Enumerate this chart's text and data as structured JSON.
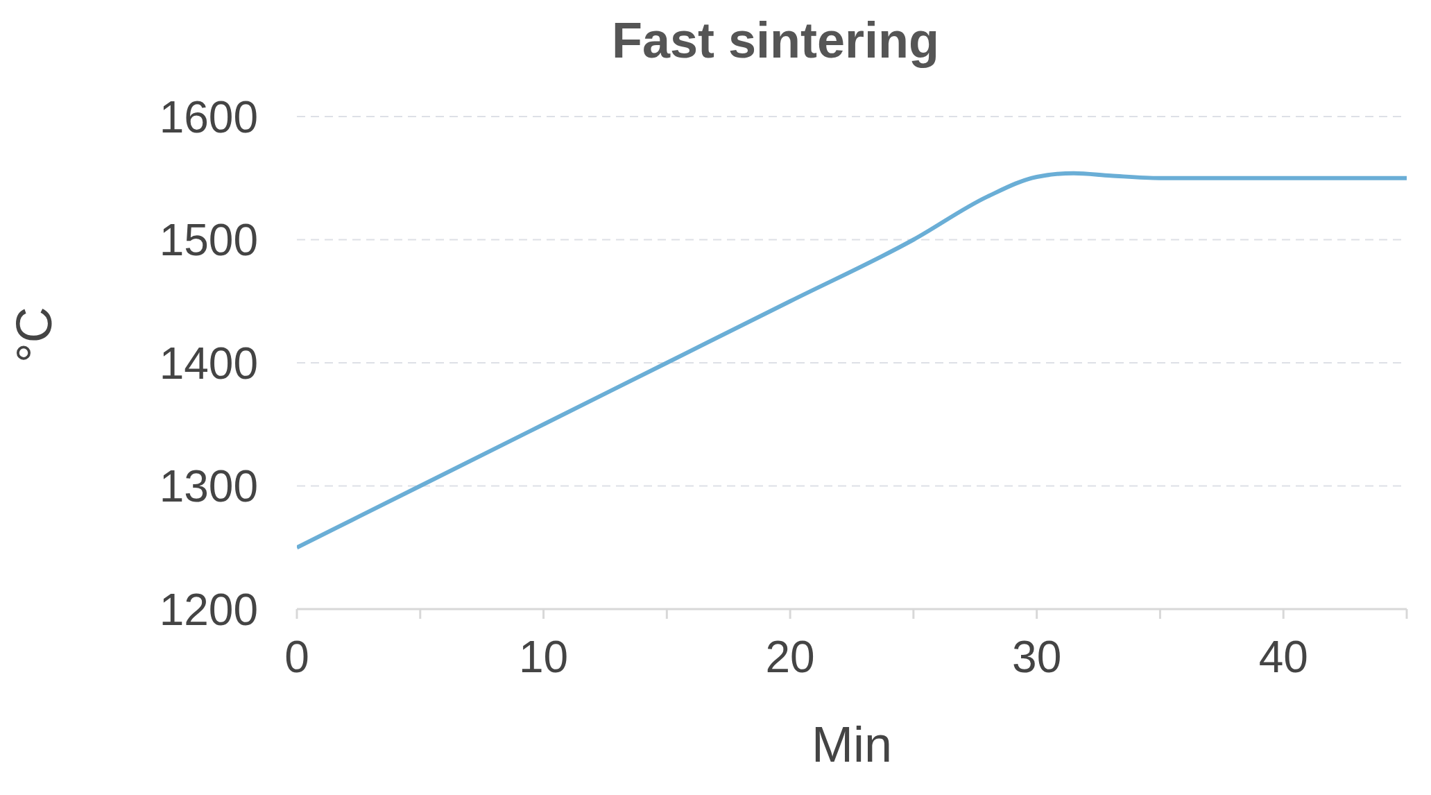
{
  "chart_data": {
    "type": "line",
    "title": "Fast sintering",
    "xlabel": "Min",
    "ylabel": "°C",
    "x": [
      0,
      5,
      10,
      15,
      20,
      25,
      28,
      30,
      31.5,
      33,
      35,
      40,
      45
    ],
    "series": [
      {
        "color": "#6aaed6",
        "values": [
          1250,
          1300,
          1350,
          1400,
          1450,
          1500,
          1535,
          1551,
          1554,
          1552,
          1550,
          1550,
          1550
        ]
      }
    ],
    "xlim": [
      0,
      45
    ],
    "xticks": [
      0,
      {
        "value": 5,
        "label": null
      },
      10,
      {
        "value": 15,
        "label": null
      },
      20,
      {
        "value": 25,
        "label": null
      },
      30,
      {
        "value": 35,
        "label": null
      },
      40,
      {
        "value": 45,
        "label": null
      }
    ],
    "ylim": [
      1200,
      1600
    ],
    "yticks": [
      1200,
      1300,
      1400,
      1500,
      1600
    ],
    "grid": "y",
    "marker": "none",
    "line_style": "solid"
  }
}
